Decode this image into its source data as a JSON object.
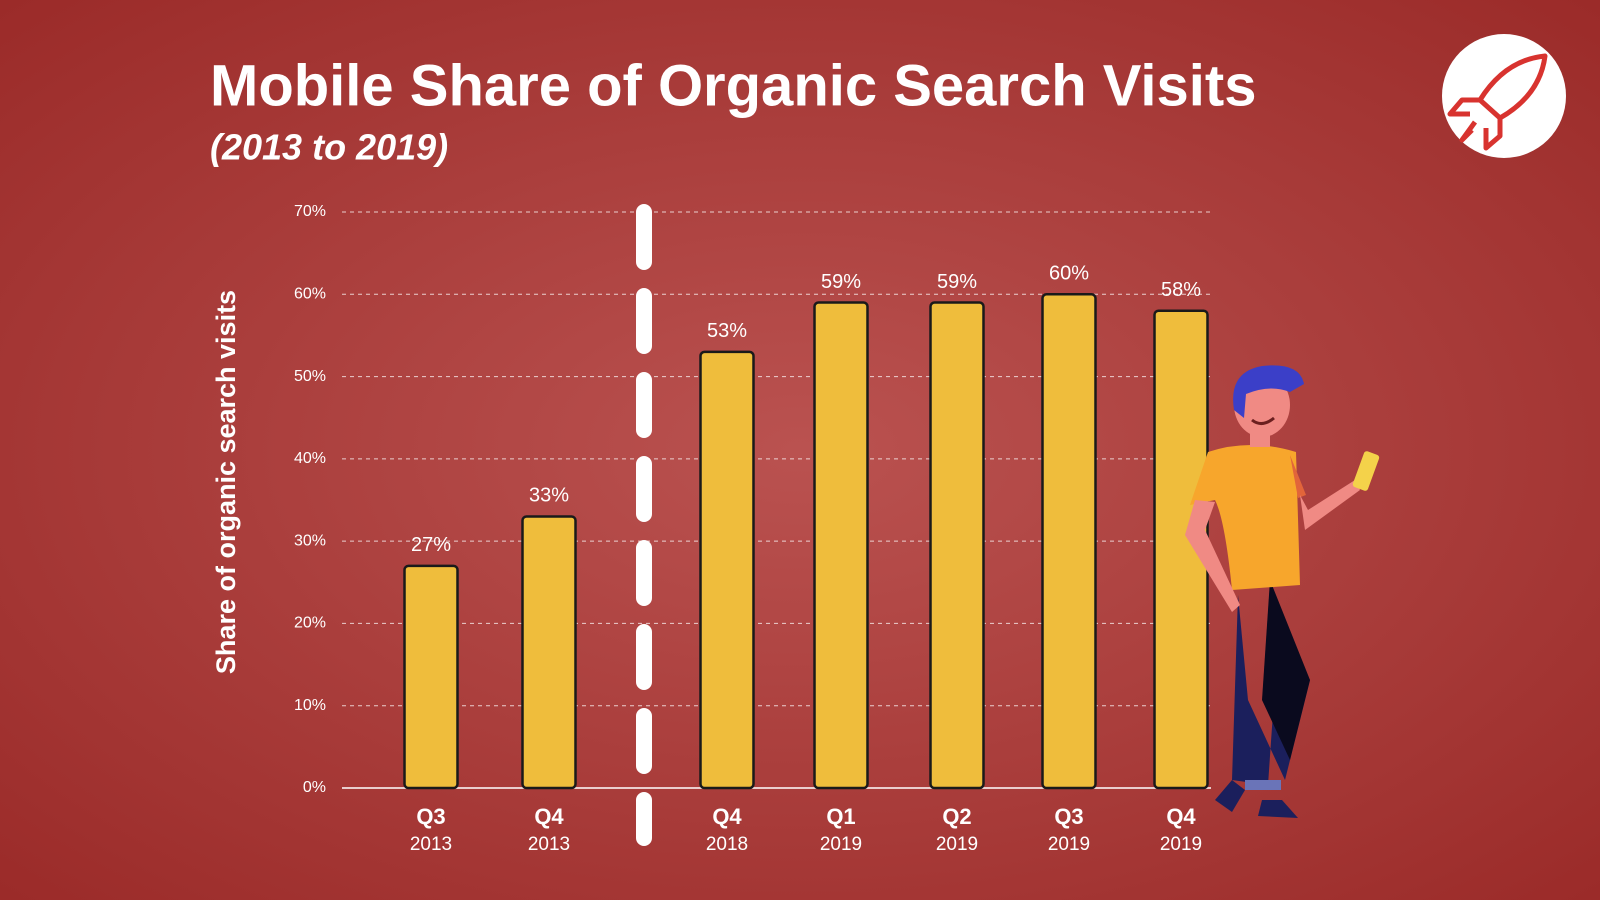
{
  "chart_data": {
    "type": "bar",
    "title": "Mobile Share of Organic Search Visits",
    "subtitle": "(2013 to 2019)",
    "y_label": "Share of organic search visits",
    "categories": [
      [
        "Q3",
        "2013"
      ],
      [
        "Q4",
        "2013"
      ],
      [
        "Q4",
        "2018"
      ],
      [
        "Q1",
        "2019"
      ],
      [
        "Q2",
        "2019"
      ],
      [
        "Q3",
        "2019"
      ],
      [
        "Q4",
        "2019"
      ]
    ],
    "values": [
      27,
      33,
      53,
      59,
      59,
      60,
      58
    ],
    "value_labels": [
      "27%",
      "33%",
      "53%",
      "59%",
      "59%",
      "60%",
      "58%"
    ],
    "color": "#efbd3c",
    "ylim": [
      0,
      70
    ],
    "yticks": [
      {
        "value": 0,
        "label": "0%"
      },
      {
        "value": 10,
        "label": "10%"
      },
      {
        "value": 20,
        "label": "20%"
      },
      {
        "value": 30,
        "label": "30%"
      },
      {
        "value": 40,
        "label": "40%"
      },
      {
        "value": 50,
        "label": "50%"
      },
      {
        "value": 60,
        "label": "60%"
      },
      {
        "value": 70,
        "label": "70%"
      }
    ],
    "grid": true
  }
}
